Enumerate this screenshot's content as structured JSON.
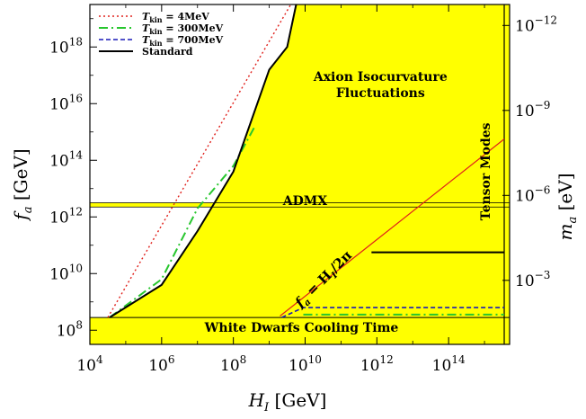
{
  "chart_data": {
    "type": "line",
    "xlabel": "H_I [GeV]",
    "ylabel": "f_a [GeV]",
    "y2label": "m_a [eV]",
    "x_scale": "log10",
    "y_scale": "log10",
    "xlim_log10": [
      4,
      15.7
    ],
    "ylim_log10": [
      7.5,
      19.5
    ],
    "x_ticks": [
      {
        "exp": 4,
        "label": "10^4"
      },
      {
        "exp": 6,
        "label": "10^6"
      },
      {
        "exp": 8,
        "label": "10^8"
      },
      {
        "exp": 10,
        "label": "10^10"
      },
      {
        "exp": 12,
        "label": "10^12"
      },
      {
        "exp": 14,
        "label": "10^14"
      }
    ],
    "y_ticks": [
      {
        "exp": 8,
        "label": "10^8"
      },
      {
        "exp": 10,
        "label": "10^10"
      },
      {
        "exp": 12,
        "label": "10^12"
      },
      {
        "exp": 14,
        "label": "10^14"
      },
      {
        "exp": 16,
        "label": "10^16"
      },
      {
        "exp": 18,
        "label": "10^18"
      }
    ],
    "y2_ticks": [
      {
        "fa_log10": 18.76,
        "label": "10^−12"
      },
      {
        "fa_log10": 15.76,
        "label": "10^−9"
      },
      {
        "fa_log10": 12.76,
        "label": "10^−6"
      },
      {
        "fa_log10": 9.76,
        "label": "10^−3"
      }
    ],
    "legend": {
      "position": "top-left",
      "entries": [
        {
          "label_main": "T",
          "label_sub": "kin",
          "label_rest": " = 4MeV",
          "color": "#e0201b",
          "dash": "2,3",
          "width": 1.4
        },
        {
          "label_main": "T",
          "label_sub": "kin",
          "label_rest": " = 300MeV",
          "color": "#27c62e",
          "dash": "10,4,2,4",
          "width": 2
        },
        {
          "label_main": "T",
          "label_sub": "kin",
          "label_rest": " = 700MeV",
          "color": "#1a1ab8",
          "dash": "5,3",
          "width": 1.6
        },
        {
          "label_main": "Standard",
          "label_sub": "",
          "label_rest": "",
          "color": "#000000",
          "dash": "",
          "width": 2
        }
      ]
    },
    "series": [
      {
        "name": "T_kin = 4MeV",
        "color": "#e0201b",
        "dash": "2,3",
        "width": 1.4,
        "points": [
          [
            4.5,
            8.45
          ],
          [
            9.6,
            19.5
          ]
        ]
      },
      {
        "name": "T_kin = 300MeV",
        "color": "#27c62e",
        "dash": "10,4,2,4",
        "width": 2,
        "points": [
          [
            4.55,
            8.45
          ],
          [
            6.0,
            9.8
          ],
          [
            7.0,
            12.3
          ],
          [
            8.0,
            13.8
          ],
          [
            8.6,
            15.2
          ]
        ]
      },
      {
        "name": "T_kin = 700MeV",
        "color": "#1a1ab8",
        "dash": "5,3",
        "width": 1.6,
        "points": [
          [
            9.35,
            8.45
          ],
          [
            9.95,
            8.8
          ],
          [
            15.55,
            8.8
          ]
        ]
      },
      {
        "name": "Standard",
        "color": "#000000",
        "dash": "",
        "width": 2,
        "points": [
          [
            4.55,
            8.45
          ],
          [
            6.0,
            9.6
          ],
          [
            7.0,
            11.5
          ],
          [
            8.0,
            13.6
          ],
          [
            9.0,
            17.2
          ],
          [
            9.5,
            18.0
          ],
          [
            9.75,
            19.5
          ]
        ]
      },
      {
        "name": "Standard (high H_I)",
        "color": "#000000",
        "dash": "",
        "width": 2,
        "points": [
          [
            11.85,
            10.75
          ],
          [
            15.55,
            10.75
          ]
        ]
      },
      {
        "name": "300MeV (high H_I)",
        "color": "#27c62e",
        "dash": "10,4,2,4",
        "width": 2,
        "points": [
          [
            9.95,
            8.55
          ],
          [
            15.55,
            8.55
          ]
        ]
      },
      {
        "name": "f_a = H_I/2π",
        "color": "#e0201b",
        "dash": "",
        "width": 1.2,
        "points": [
          [
            9.3,
            8.5
          ],
          [
            15.55,
            14.75
          ]
        ]
      }
    ],
    "regions": {
      "excluded_fill": "#ffff00",
      "white_dwarf_band_log10": [
        7.5,
        8.45
      ],
      "admx_band_log10": [
        12.35,
        12.5
      ],
      "tensor_modes_x_log10": 15.55,
      "isocurvature_boundary": [
        [
          4.55,
          8.45
        ],
        [
          6.0,
          9.6
        ],
        [
          7.0,
          11.5
        ],
        [
          8.0,
          13.6
        ],
        [
          9.0,
          17.2
        ],
        [
          9.5,
          18.0
        ],
        [
          9.75,
          19.5
        ]
      ]
    },
    "annotations": [
      {
        "id": "axion-iso",
        "lines": [
          "Axion Isocurvature",
          "Fluctuations"
        ],
        "x_log10": 12.1,
        "y_log10": 16.8,
        "rotate": 0
      },
      {
        "id": "admx",
        "lines": [
          "ADMX"
        ],
        "x_log10": 10.0,
        "y_log10": 12.42,
        "rotate": 0
      },
      {
        "id": "white-dwarfs",
        "lines": [
          "White Dwarfs Cooling Time"
        ],
        "x_log10": 9.9,
        "y_log10": 7.95,
        "rotate": 0
      },
      {
        "id": "tensor-modes",
        "lines": [
          "Tensor Modes"
        ],
        "x_log10": 15.15,
        "y_log10": 13.6,
        "rotate": -90
      }
    ],
    "diagonal_label": {
      "main": "f",
      "sub": "a",
      "rest": " = H",
      "sub2": "I",
      "rest2": "/2π",
      "x_log10": 10.6,
      "y_log10": 9.7,
      "slope_deg": -45
    }
  }
}
